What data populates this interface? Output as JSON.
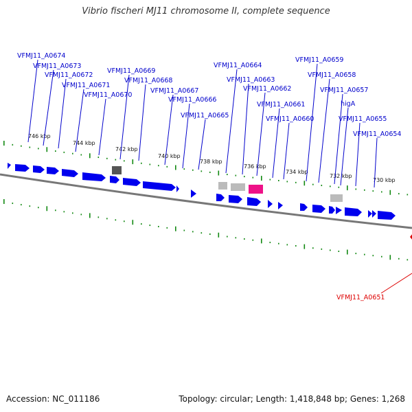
{
  "title": "Vibrio fischeri MJ11 chromosome II, complete sequence",
  "footer": {
    "accession": "Accession: NC_011186",
    "summary": "Topology: circular; Length: 1,418,848 bp; Genes: 1,268"
  },
  "colors": {
    "gene": "#0000ee",
    "label_blue": "#0000cc",
    "label_red": "#dd0000",
    "tick": "#118811",
    "backbone": "#777777",
    "rna_gray": "#bbbbbb",
    "rna_dark": "#555555",
    "rna_pink": "#ee1188"
  },
  "scale": {
    "tick_labels": [
      "746 kbp",
      "744 kbp",
      "742 kbp",
      "740 kbp",
      "738 kbp",
      "736 kbp",
      "734 kbp",
      "732 kbp",
      "730 kbp"
    ]
  },
  "gene_labels": [
    "VFMJ11_A0674",
    "VFMJ11_A0673",
    "VFMJ11_A0672",
    "VFMJ11_A0671",
    "VFMJ11_A0670",
    "VFMJ11_A0669",
    "VFMJ11_A0668",
    "VFMJ11_A0667",
    "VFMJ11_A0666",
    "VFMJ11_A0665",
    "VFMJ11_A0664",
    "VFMJ11_A0663",
    "VFMJ11_A0662",
    "VFMJ11_A0661",
    "VFMJ11_A0660",
    "VFMJ11_A0659",
    "VFMJ11_A0658",
    "VFMJ11_A0657",
    "higA",
    "VFMJ11_A0655",
    "VFMJ11_A0654",
    "VFMJ11_A0651"
  ]
}
